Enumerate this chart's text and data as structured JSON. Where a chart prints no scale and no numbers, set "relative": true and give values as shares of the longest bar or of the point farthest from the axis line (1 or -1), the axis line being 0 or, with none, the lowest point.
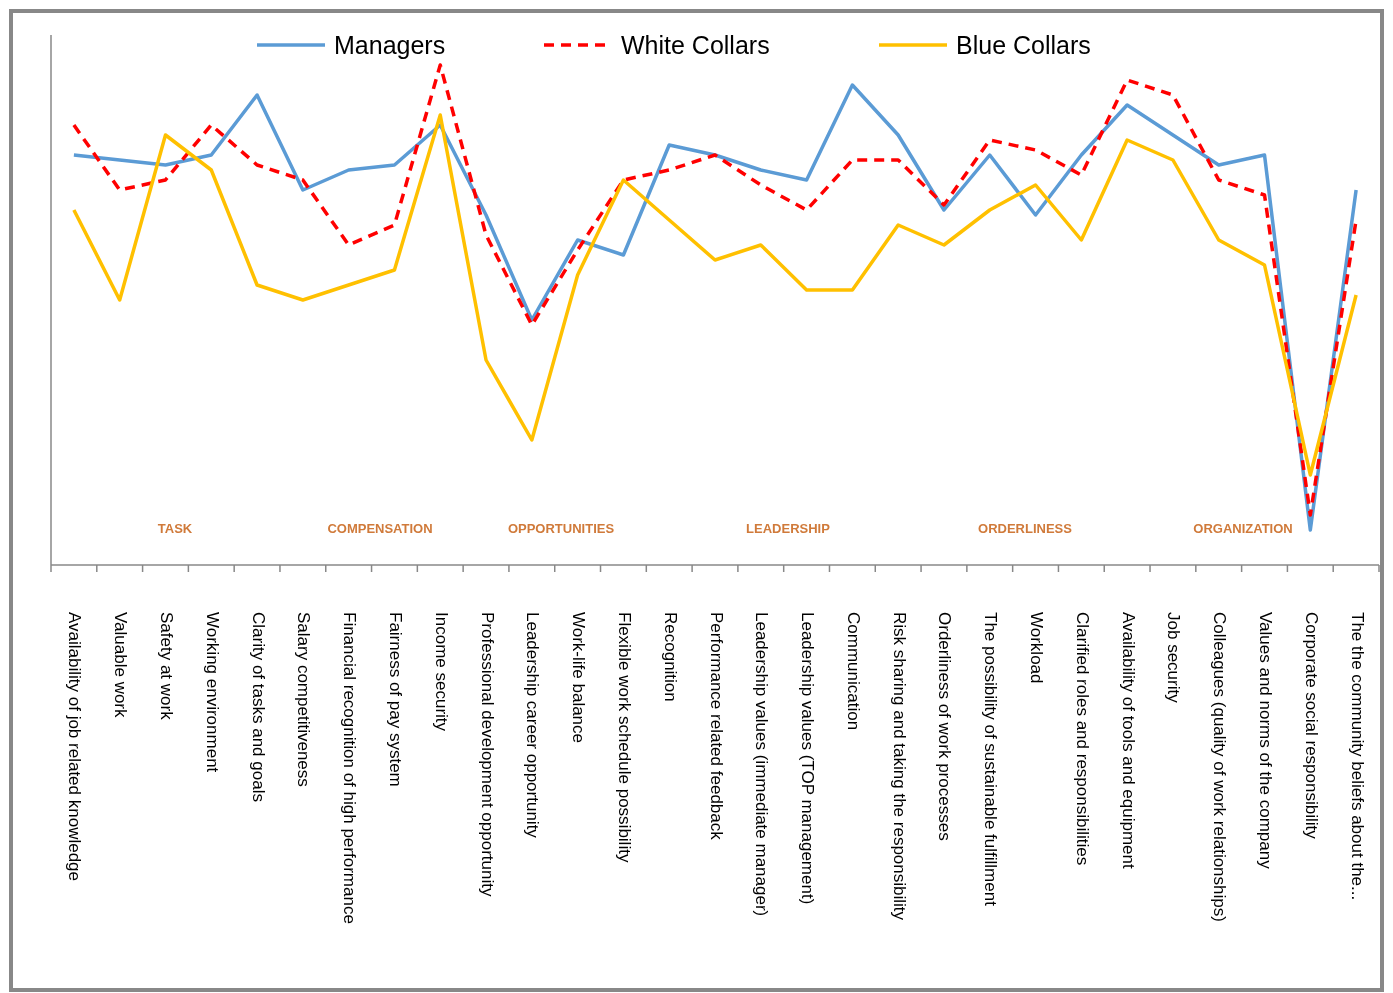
{
  "chart_data": {
    "type": "line",
    "relative": true,
    "legend": "top",
    "categories": [
      "Availability of job related knowledge",
      "Valuable work",
      "Safety at work",
      "Working environment",
      "Clarity of tasks and goals",
      "Salary competitiveness",
      "Financial recognition of high performance",
      "Fairness of pay system",
      "Income security",
      "Professional development opportunity",
      "Leadership career opportunity",
      "Work-life balance",
      "Flexible work schedule possibility",
      "Recognition",
      "Performance related feedback",
      "Leadership values (immediate manager)",
      "Leadership values (TOP management)",
      "Communication",
      "Risk sharing and taking the responsibility",
      "Orderliness of work processes",
      "The possibility of sustainable fulfillment",
      "Workload",
      "Clarified roles and responsibilities",
      "Availability of tools and equipment",
      "Job security",
      "Colleagues (quality of work relationships)",
      "Values and norms of the company",
      "Corporate social responsibility",
      "The the community beliefs about the..."
    ],
    "series": [
      {
        "name": "Managers",
        "color": "#5b9bd5",
        "line_style": "solid",
        "values": [
          0.82,
          0.81,
          0.8,
          0.82,
          0.94,
          0.75,
          0.79,
          0.8,
          0.88,
          0.7,
          0.49,
          0.65,
          0.62,
          0.84,
          0.82,
          0.79,
          0.77,
          0.96,
          0.86,
          0.71,
          0.82,
          0.7,
          0.82,
          0.92,
          0.86,
          0.8,
          0.82,
          0.07,
          0.75
        ]
      },
      {
        "name": "White Collars",
        "color": "#ff0000",
        "line_style": "dashed",
        "values": [
          0.88,
          0.75,
          0.77,
          0.88,
          0.8,
          0.77,
          0.64,
          0.68,
          1,
          0.66,
          0.48,
          0.63,
          0.77,
          0.79,
          0.82,
          0.76,
          0.71,
          0.81,
          0.81,
          0.72,
          0.85,
          0.83,
          0.78,
          0.97,
          0.94,
          0.77,
          0.74,
          0.1,
          0.69
        ]
      },
      {
        "name": "Blue Collars",
        "color": "#ffc000",
        "line_style": "solid",
        "values": [
          0.71,
          0.53,
          0.86,
          0.79,
          0.56,
          0.53,
          0.56,
          0.59,
          0.9,
          0.41,
          0.25,
          0.58,
          0.77,
          0.69,
          0.61,
          0.64,
          0.55,
          0.55,
          0.68,
          0.64,
          0.71,
          0.76,
          0.65,
          0.85,
          0.81,
          0.65,
          0.6,
          0.18,
          0.54
        ]
      }
    ],
    "annotations": [
      "TASK",
      "COMPENSATION",
      "OPPORTUNITIES",
      "LEADERSHIP",
      "ORDERLINESS",
      "ORGANIZATION"
    ]
  }
}
